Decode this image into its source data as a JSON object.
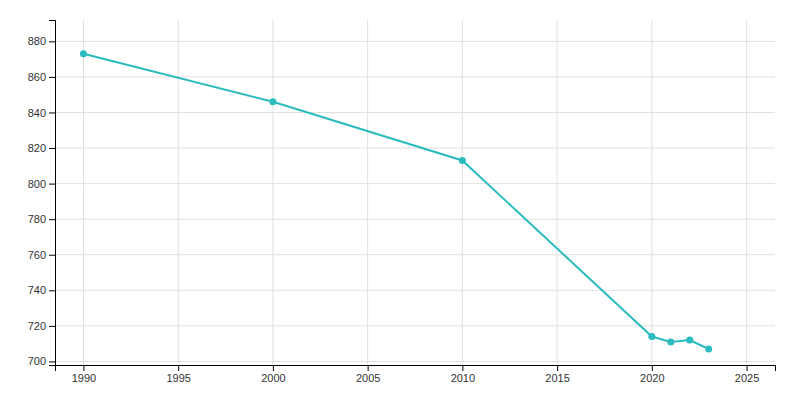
{
  "chart_data": {
    "type": "line",
    "x": [
      1990,
      2000,
      2010,
      2020,
      2021,
      2022,
      2023
    ],
    "values": [
      873,
      846,
      813,
      714,
      711,
      712,
      707
    ],
    "color": "#2abcbe",
    "marker": "circle",
    "xlim": [
      1988.5,
      2026.5
    ],
    "ylim": [
      698,
      892
    ],
    "xticks": [
      1990,
      1995,
      2000,
      2005,
      2010,
      2015,
      2020,
      2025
    ],
    "yticks": [
      700,
      720,
      740,
      760,
      780,
      800,
      820,
      840,
      860,
      880
    ],
    "grid": true
  }
}
